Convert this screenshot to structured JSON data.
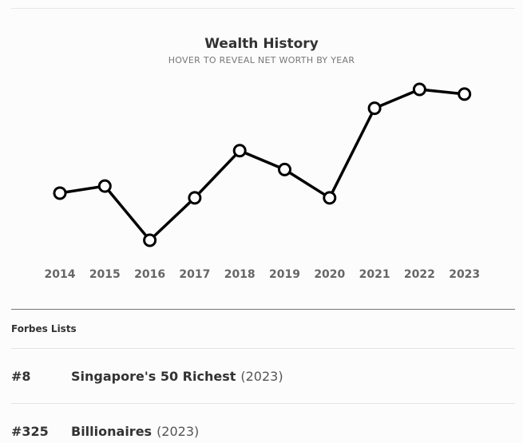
{
  "chart": {
    "title": "Wealth History",
    "subtitle": "HOVER TO REVEAL NET WORTH BY YEAR"
  },
  "chart_data": {
    "type": "line",
    "title": "Wealth History",
    "subtitle": "HOVER TO REVEAL NET WORTH BY YEAR",
    "categories": [
      "2014",
      "2015",
      "2016",
      "2017",
      "2018",
      "2019",
      "2020",
      "2021",
      "2022",
      "2023"
    ],
    "series": [
      {
        "values": [
          4.0,
          4.3,
          2.0,
          3.8,
          5.8,
          5.0,
          3.8,
          7.6,
          8.4,
          8.2
        ]
      }
    ],
    "ylim": [
      2.0,
      8.4
    ],
    "grid": false,
    "colors": {
      "line": "#000000",
      "marker_fill": "#ffffff"
    }
  },
  "forbes": {
    "heading": "Forbes Lists",
    "items": [
      {
        "rank": "#8",
        "name": "Singapore's 50 Richest",
        "year": "(2023)"
      },
      {
        "rank": "#325",
        "name": "Billionaires",
        "year": "(2023)"
      }
    ]
  }
}
